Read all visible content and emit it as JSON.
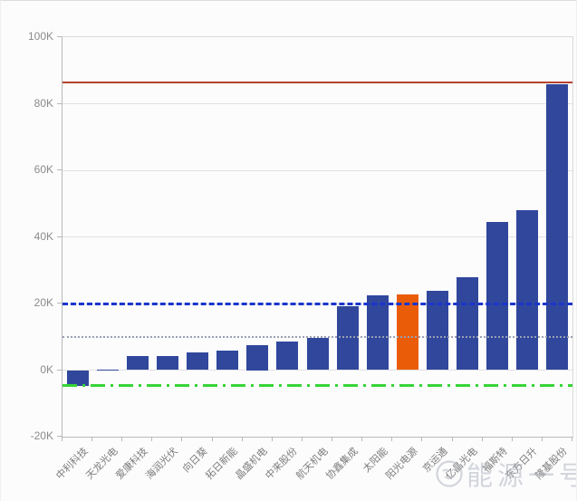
{
  "watermark": {
    "text": "能源一号",
    "icon": "winking-face-icon"
  },
  "chart_data": {
    "type": "bar",
    "title": "",
    "xlabel": "",
    "ylabel": "",
    "unit": "K",
    "categories": [
      "中利科技",
      "天龙光电",
      "爱康科技",
      "海润光伏",
      "向日葵",
      "拓日新能",
      "晶盛机电",
      "中来股份",
      "航天机电",
      "协鑫集成",
      "太阳能",
      "阳光电源",
      "京运通",
      "亿晶光电",
      "福斯特",
      "东方日升",
      "隆基股份"
    ],
    "values": [
      -4.8,
      0.2,
      4.1,
      4.3,
      5.3,
      5.8,
      7.5,
      8.5,
      9.6,
      19.3,
      22.4,
      22.7,
      23.9,
      27.9,
      44.4,
      48.0,
      85.8
    ],
    "bar_color": "#30479c",
    "highlight": {
      "index": 11,
      "category": "阳光电源",
      "color": "#eb5c09"
    },
    "y_axis": {
      "min": -20,
      "max": 100,
      "ticks": [
        100,
        80,
        60,
        40,
        20,
        0,
        -20
      ],
      "tick_labels": [
        "100K",
        "80K",
        "60K",
        "40K",
        "20K",
        "0K",
        "-20K"
      ]
    },
    "reference_lines": [
      {
        "name": "red-solid-line",
        "value": 86.3,
        "style": "solid",
        "color": "#b4432e"
      },
      {
        "name": "blue-dashed-line",
        "value": 19.8,
        "style": "dashed",
        "color": "#1a35cc"
      },
      {
        "name": "gray-dotted-line",
        "value": 10.0,
        "style": "dotted",
        "color": "#99a0b3"
      },
      {
        "name": "green-dashdot-line",
        "value": -4.5,
        "style": "dashdot",
        "color": "#37d437"
      }
    ],
    "grid": true,
    "legend": false,
    "x_label_rotation": 45
  }
}
